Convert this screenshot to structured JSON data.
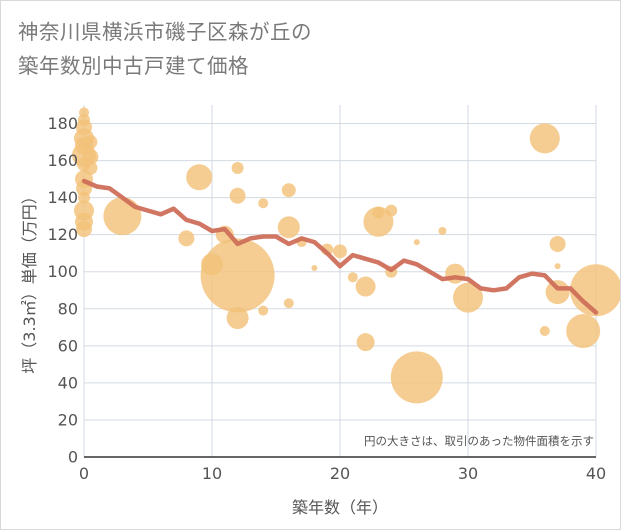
{
  "title_lines": [
    "神奈川県横浜市磯子区森が丘の",
    "築年数別中古戸建て価格"
  ],
  "chart_data": {
    "type": "scatter",
    "xlabel": "築年数（年）",
    "ylabel": "坪（3.3㎡）単価（万円）",
    "xlim": [
      0,
      40
    ],
    "ylim": [
      0,
      190
    ],
    "x_ticks": [
      0,
      10,
      20,
      30,
      40
    ],
    "y_ticks": [
      0,
      20,
      40,
      60,
      80,
      100,
      120,
      140,
      160,
      180
    ],
    "grid": true,
    "note": "円の大きさは、取引のあった物件面積を示す",
    "colors": {
      "bubble": "#f3c27a",
      "line": "#cf6f5a",
      "grid": "#d3dbe3",
      "plot_bg": "#ffffff"
    },
    "bubbles": [
      {
        "x": 0,
        "y": 186,
        "s": 5
      },
      {
        "x": 0,
        "y": 182,
        "s": 6
      },
      {
        "x": 0,
        "y": 178,
        "s": 8
      },
      {
        "x": 0,
        "y": 172,
        "s": 10
      },
      {
        "x": 0,
        "y": 168,
        "s": 9
      },
      {
        "x": 0,
        "y": 163,
        "s": 12
      },
      {
        "x": 0,
        "y": 158,
        "s": 7
      },
      {
        "x": 0,
        "y": 150,
        "s": 9
      },
      {
        "x": 0,
        "y": 145,
        "s": 8
      },
      {
        "x": 0,
        "y": 140,
        "s": 6
      },
      {
        "x": 0,
        "y": 133,
        "s": 10
      },
      {
        "x": 0,
        "y": 127,
        "s": 9
      },
      {
        "x": 0,
        "y": 123,
        "s": 8
      },
      {
        "x": 0.5,
        "y": 170,
        "s": 7
      },
      {
        "x": 0.5,
        "y": 162,
        "s": 8
      },
      {
        "x": 0.5,
        "y": 156,
        "s": 7
      },
      {
        "x": 3,
        "y": 130,
        "s": 19
      },
      {
        "x": 8,
        "y": 118,
        "s": 8
      },
      {
        "x": 9,
        "y": 151,
        "s": 13
      },
      {
        "x": 10,
        "y": 104,
        "s": 11
      },
      {
        "x": 11,
        "y": 120,
        "s": 9
      },
      {
        "x": 12,
        "y": 98,
        "s": 37
      },
      {
        "x": 12,
        "y": 75,
        "s": 11
      },
      {
        "x": 12,
        "y": 156,
        "s": 6
      },
      {
        "x": 12,
        "y": 141,
        "s": 8
      },
      {
        "x": 14,
        "y": 137,
        "s": 5
      },
      {
        "x": 14,
        "y": 79,
        "s": 5
      },
      {
        "x": 16,
        "y": 144,
        "s": 7
      },
      {
        "x": 16,
        "y": 124,
        "s": 11
      },
      {
        "x": 16,
        "y": 83,
        "s": 5
      },
      {
        "x": 17,
        "y": 116,
        "s": 5
      },
      {
        "x": 18,
        "y": 102,
        "s": 3
      },
      {
        "x": 19,
        "y": 112,
        "s": 6
      },
      {
        "x": 20,
        "y": 111,
        "s": 7
      },
      {
        "x": 21,
        "y": 97,
        "s": 5
      },
      {
        "x": 22,
        "y": 92,
        "s": 10
      },
      {
        "x": 22,
        "y": 62,
        "s": 9
      },
      {
        "x": 23,
        "y": 127,
        "s": 15
      },
      {
        "x": 23,
        "y": 132,
        "s": 6
      },
      {
        "x": 24,
        "y": 133,
        "s": 6
      },
      {
        "x": 24,
        "y": 100,
        "s": 6
      },
      {
        "x": 26,
        "y": 43,
        "s": 26
      },
      {
        "x": 26,
        "y": 116,
        "s": 3
      },
      {
        "x": 28,
        "y": 122,
        "s": 4
      },
      {
        "x": 29,
        "y": 99,
        "s": 10
      },
      {
        "x": 30,
        "y": 86,
        "s": 15
      },
      {
        "x": 36,
        "y": 172,
        "s": 15
      },
      {
        "x": 36,
        "y": 68,
        "s": 5
      },
      {
        "x": 37,
        "y": 115,
        "s": 8
      },
      {
        "x": 37,
        "y": 103,
        "s": 3
      },
      {
        "x": 37,
        "y": 89,
        "s": 12
      },
      {
        "x": 39,
        "y": 68,
        "s": 17
      },
      {
        "x": 40,
        "y": 90,
        "s": 26
      }
    ],
    "trend": {
      "x": [
        0,
        1,
        2,
        3,
        4,
        5,
        6,
        7,
        8,
        9,
        10,
        11,
        12,
        13,
        14,
        15,
        16,
        17,
        18,
        19,
        20,
        21,
        22,
        23,
        24,
        25,
        26,
        27,
        28,
        29,
        30,
        31,
        32,
        33,
        34,
        35,
        36,
        37,
        38,
        39,
        40
      ],
      "y": [
        149,
        146,
        145,
        140,
        135,
        133,
        131,
        134,
        128,
        126,
        122,
        123,
        115,
        118,
        119,
        119,
        115,
        118,
        116,
        110,
        103,
        109,
        107,
        105,
        101,
        106,
        104,
        100,
        96,
        97,
        96,
        91,
        90,
        91,
        97,
        99,
        98,
        91,
        91,
        84,
        78
      ]
    }
  }
}
